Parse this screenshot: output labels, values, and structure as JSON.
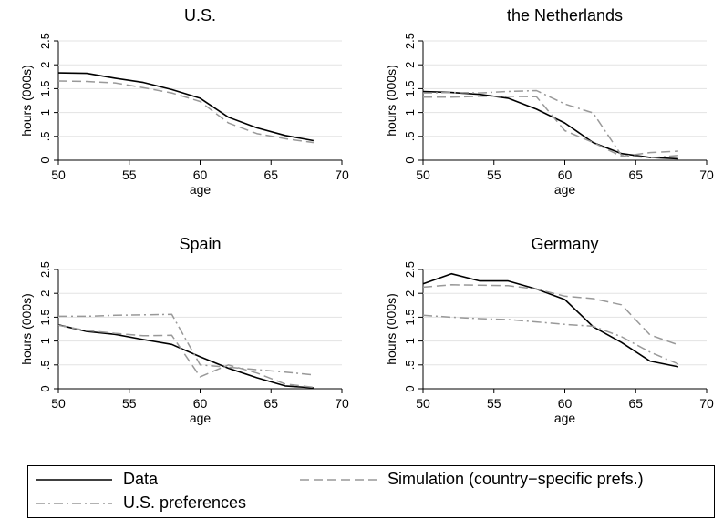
{
  "chart_data": {
    "type": "line",
    "panels": [
      {
        "title": "U.S.",
        "xlabel": "age",
        "ylabel": "hours (000s)",
        "xlim": [
          50,
          70
        ],
        "ylim": [
          0,
          2.5
        ],
        "xticks": [
          "50",
          "55",
          "60",
          "65",
          "70"
        ],
        "yticks": [
          "0",
          ".5",
          "1",
          "1.5",
          "2",
          "2.5"
        ],
        "series": [
          {
            "key": "data",
            "x": [
              50,
              52,
              54,
              56,
              58,
              60,
              62,
              64,
              66,
              68
            ],
            "values": [
              1.83,
              1.82,
              1.72,
              1.63,
              1.48,
              1.3,
              0.9,
              0.68,
              0.52,
              0.41
            ]
          },
          {
            "key": "sim",
            "x": [
              50,
              52,
              54,
              56,
              58,
              60,
              62,
              64,
              66,
              68
            ],
            "values": [
              1.66,
              1.65,
              1.62,
              1.52,
              1.41,
              1.23,
              0.78,
              0.56,
              0.45,
              0.37
            ]
          }
        ]
      },
      {
        "title": "the Netherlands",
        "xlabel": "age",
        "ylabel": "hours (000s)",
        "xlim": [
          50,
          70
        ],
        "ylim": [
          0,
          2.5
        ],
        "xticks": [
          "50",
          "55",
          "60",
          "65",
          "70"
        ],
        "yticks": [
          "0",
          ".5",
          "1",
          "1.5",
          "2",
          "2.5"
        ],
        "series": [
          {
            "key": "data",
            "x": [
              50,
              52,
              54,
              56,
              58,
              60,
              62,
              64,
              66,
              68
            ],
            "values": [
              1.44,
              1.42,
              1.38,
              1.3,
              1.07,
              0.78,
              0.37,
              0.14,
              0.06,
              0.03
            ]
          },
          {
            "key": "sim",
            "x": [
              50,
              52,
              54,
              56,
              58,
              60,
              62,
              64,
              66,
              68
            ],
            "values": [
              1.32,
              1.32,
              1.34,
              1.34,
              1.33,
              0.62,
              0.37,
              0.08,
              0.16,
              0.19
            ]
          },
          {
            "key": "us",
            "x": [
              50,
              52,
              54,
              56,
              58,
              60,
              62,
              64,
              66,
              68
            ],
            "values": [
              1.41,
              1.42,
              1.41,
              1.44,
              1.46,
              1.18,
              0.99,
              0.1,
              0.05,
              0.1
            ]
          }
        ]
      },
      {
        "title": "Spain",
        "xlabel": "age",
        "ylabel": "hours (000s)",
        "xlim": [
          50,
          70
        ],
        "ylim": [
          0,
          2.5
        ],
        "xticks": [
          "50",
          "55",
          "60",
          "65",
          "70"
        ],
        "yticks": [
          "0",
          ".5",
          "1",
          "1.5",
          "2",
          "2.5"
        ],
        "series": [
          {
            "key": "data",
            "x": [
              50,
              52,
              54,
              56,
              58,
              60,
              62,
              64,
              66,
              68
            ],
            "values": [
              1.34,
              1.2,
              1.14,
              1.03,
              0.93,
              0.67,
              0.43,
              0.23,
              0.06,
              0.02
            ]
          },
          {
            "key": "sim",
            "x": [
              50,
              52,
              54,
              56,
              58,
              60,
              62,
              64,
              66,
              68
            ],
            "values": [
              1.33,
              1.22,
              1.16,
              1.11,
              1.12,
              0.25,
              0.5,
              0.33,
              0.1,
              0.03
            ]
          },
          {
            "key": "us",
            "x": [
              50,
              52,
              54,
              56,
              58,
              60,
              62,
              64,
              66,
              68
            ],
            "values": [
              1.52,
              1.52,
              1.54,
              1.55,
              1.56,
              0.5,
              0.45,
              0.4,
              0.35,
              0.29
            ]
          }
        ]
      },
      {
        "title": "Germany",
        "xlabel": "age",
        "ylabel": "hours (000s)",
        "xlim": [
          50,
          70
        ],
        "ylim": [
          0,
          2.5
        ],
        "xticks": [
          "50",
          "55",
          "60",
          "65",
          "70"
        ],
        "yticks": [
          "0",
          ".5",
          "1",
          "1.5",
          "2",
          "2.5"
        ],
        "series": [
          {
            "key": "data",
            "x": [
              50,
              52,
              54,
              56,
              58,
              60,
              62,
              64,
              66,
              68
            ],
            "values": [
              2.2,
              2.41,
              2.26,
              2.26,
              2.09,
              1.87,
              1.3,
              0.97,
              0.58,
              0.46
            ]
          },
          {
            "key": "sim",
            "x": [
              50,
              52,
              54,
              56,
              58,
              60,
              62,
              64,
              66,
              68
            ],
            "values": [
              2.13,
              2.18,
              2.17,
              2.16,
              2.09,
              1.94,
              1.89,
              1.76,
              1.13,
              0.92
            ]
          },
          {
            "key": "us",
            "x": [
              50,
              52,
              54,
              56,
              58,
              60,
              62,
              64,
              66,
              68
            ],
            "values": [
              1.54,
              1.5,
              1.47,
              1.45,
              1.4,
              1.35,
              1.31,
              1.09,
              0.77,
              0.52
            ]
          }
        ]
      }
    ],
    "legend": {
      "position": "bottom",
      "entries": [
        {
          "key": "data",
          "label": "Data",
          "color": "#000000",
          "dash": "solid"
        },
        {
          "key": "sim",
          "label": "Simulation (country−specific prefs.)",
          "color": "#999999",
          "dash": "dashed"
        },
        {
          "key": "us",
          "label": "U.S. preferences",
          "color": "#999999",
          "dash": "dash-dot"
        }
      ]
    }
  }
}
